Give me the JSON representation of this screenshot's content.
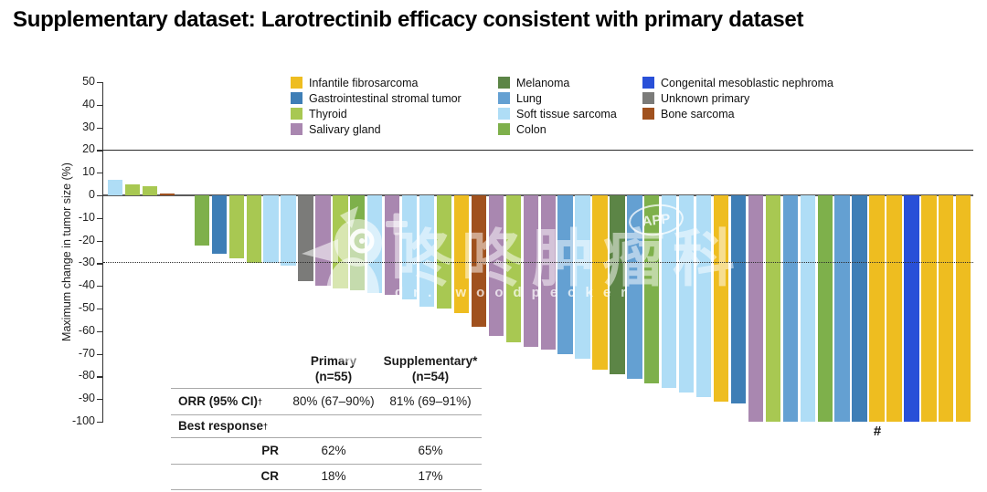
{
  "title": "Supplementary dataset: Larotrectinib efficacy consistent with primary dataset",
  "colors": {
    "infantile": "#EEBD20",
    "gist": "#3E7EB6",
    "thyroid": "#A8C852",
    "salivary": "#A987B0",
    "melanoma": "#5C8546",
    "lung": "#64A0D2",
    "soft_tissue": "#AFDDF6",
    "colon": "#7EB04B",
    "cmn": "#2950D8",
    "unknown": "#7B7B79",
    "bone": "#A0511E"
  },
  "legend": {
    "columns": [
      [
        {
          "label": "Infantile fibrosarcoma",
          "color_key": "infantile"
        },
        {
          "label": "Gastrointestinal stromal tumor",
          "color_key": "gist"
        },
        {
          "label": "Thyroid",
          "color_key": "thyroid"
        },
        {
          "label": "Salivary gland",
          "color_key": "salivary"
        }
      ],
      [
        {
          "label": "Melanoma",
          "color_key": "melanoma"
        },
        {
          "label": "Lung",
          "color_key": "lung"
        },
        {
          "label": "Soft tissue sarcoma",
          "color_key": "soft_tissue"
        },
        {
          "label": "Colon",
          "color_key": "colon"
        }
      ],
      [
        {
          "label": "Congenital mesoblastic nephroma",
          "color_key": "cmn"
        },
        {
          "label": "Unknown primary",
          "color_key": "unknown"
        },
        {
          "label": "Bone sarcoma",
          "color_key": "bone"
        }
      ]
    ]
  },
  "chart_data": {
    "type": "bar",
    "title": "Waterfall plot of maximum change in tumor size, supplementary dataset",
    "ylabel": "Maximum change in tumor size (%)",
    "ylim": [
      -100,
      50
    ],
    "yticks": [
      50,
      40,
      30,
      20,
      10,
      0,
      -10,
      -20,
      -30,
      -40,
      -50,
      -60,
      -70,
      -80,
      -90,
      -100
    ],
    "reference_lines": [
      {
        "y": 20,
        "style": "solid"
      },
      {
        "y": 0,
        "style": "solid"
      },
      {
        "y": -30,
        "style": "dotted"
      }
    ],
    "unit": "%",
    "legend_position": "top",
    "grid": false,
    "annotation": {
      "symbol": "#",
      "bar_index": 44
    },
    "bars": [
      {
        "tumor": "soft_tissue",
        "value": 7
      },
      {
        "tumor": "thyroid",
        "value": 5
      },
      {
        "tumor": "thyroid",
        "value": 4
      },
      {
        "tumor": "bone",
        "value": 1
      },
      {
        "tumor": "none",
        "value": 0
      },
      {
        "tumor": "colon",
        "value": -22
      },
      {
        "tumor": "gist",
        "value": -26
      },
      {
        "tumor": "thyroid",
        "value": -28
      },
      {
        "tumor": "thyroid",
        "value": -30
      },
      {
        "tumor": "soft_tissue",
        "value": -30
      },
      {
        "tumor": "soft_tissue",
        "value": -31
      },
      {
        "tumor": "unknown",
        "value": -38
      },
      {
        "tumor": "salivary",
        "value": -40
      },
      {
        "tumor": "thyroid",
        "value": -41
      },
      {
        "tumor": "colon",
        "value": -42
      },
      {
        "tumor": "soft_tissue",
        "value": -43
      },
      {
        "tumor": "salivary",
        "value": -44
      },
      {
        "tumor": "soft_tissue",
        "value": -46
      },
      {
        "tumor": "soft_tissue",
        "value": -49
      },
      {
        "tumor": "thyroid",
        "value": -50
      },
      {
        "tumor": "infantile",
        "value": -52
      },
      {
        "tumor": "bone",
        "value": -58
      },
      {
        "tumor": "salivary",
        "value": -62
      },
      {
        "tumor": "thyroid",
        "value": -65
      },
      {
        "tumor": "salivary",
        "value": -67
      },
      {
        "tumor": "salivary",
        "value": -68
      },
      {
        "tumor": "lung",
        "value": -70
      },
      {
        "tumor": "soft_tissue",
        "value": -72
      },
      {
        "tumor": "infantile",
        "value": -77
      },
      {
        "tumor": "melanoma",
        "value": -79
      },
      {
        "tumor": "lung",
        "value": -81
      },
      {
        "tumor": "colon",
        "value": -83
      },
      {
        "tumor": "soft_tissue",
        "value": -85
      },
      {
        "tumor": "soft_tissue",
        "value": -87
      },
      {
        "tumor": "soft_tissue",
        "value": -89
      },
      {
        "tumor": "infantile",
        "value": -91
      },
      {
        "tumor": "gist",
        "value": -92
      },
      {
        "tumor": "salivary",
        "value": -100
      },
      {
        "tumor": "thyroid",
        "value": -100
      },
      {
        "tumor": "lung",
        "value": -100
      },
      {
        "tumor": "soft_tissue",
        "value": -100
      },
      {
        "tumor": "colon",
        "value": -100
      },
      {
        "tumor": "lung",
        "value": -100
      },
      {
        "tumor": "gist",
        "value": -100
      },
      {
        "tumor": "infantile",
        "value": -100
      },
      {
        "tumor": "infantile",
        "value": -100
      },
      {
        "tumor": "cmn",
        "value": -100
      },
      {
        "tumor": "infantile",
        "value": -100
      },
      {
        "tumor": "infantile",
        "value": -100
      },
      {
        "tumor": "infantile",
        "value": -100
      }
    ]
  },
  "table": {
    "col_headers": [
      {
        "line1": "Primary",
        "line2": "(n=55)"
      },
      {
        "line1": "Supplementary*",
        "line2": "(n=54)"
      }
    ],
    "rows": {
      "orr": {
        "label": "ORR (95% CI)",
        "sup": "†",
        "primary": "80% (67–90%)",
        "supplementary": "81% (69–91%)"
      },
      "best": {
        "label": "Best response",
        "sup": "†"
      },
      "pr": {
        "label": "PR",
        "primary": "62%",
        "supplementary": "65%"
      },
      "cr": {
        "label": "CR",
        "primary": "18%",
        "supplementary": "17%"
      }
    }
  },
  "watermark": {
    "text_cn": "咚咚肿瘤科",
    "text_en": "dr. woodpecker",
    "app_badge": "APP"
  }
}
